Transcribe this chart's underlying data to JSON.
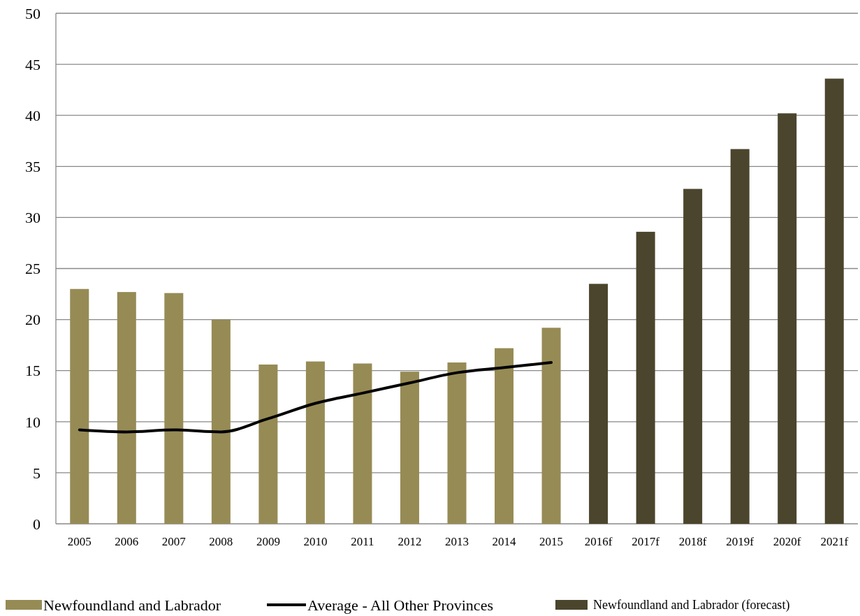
{
  "chart_data": {
    "type": "bar",
    "categories": [
      "2005",
      "2006",
      "2007",
      "2008",
      "2009",
      "2010",
      "2011",
      "2012",
      "2013",
      "2014",
      "2015",
      "2016f",
      "2017f",
      "2018f",
      "2019f",
      "2020f",
      "2021f"
    ],
    "series": [
      {
        "name": "Newfoundland and Labrador",
        "color": "#968b55",
        "values": [
          23.0,
          22.7,
          22.6,
          20.0,
          15.6,
          15.9,
          15.7,
          14.9,
          15.8,
          17.2,
          19.2,
          null,
          null,
          null,
          null,
          null,
          null
        ]
      },
      {
        "name": "Average - All Other Provinces",
        "type": "line",
        "color": "#000000",
        "values": [
          9.2,
          9.0,
          9.2,
          9.0,
          10.3,
          11.8,
          12.8,
          13.8,
          14.8,
          15.3,
          15.8,
          null,
          null,
          null,
          null,
          null,
          null
        ]
      },
      {
        "name": "Newfoundland and Labrador (forecast)",
        "color": "#4a452c",
        "values": [
          null,
          null,
          null,
          null,
          null,
          null,
          null,
          null,
          null,
          null,
          null,
          23.5,
          28.6,
          32.8,
          36.7,
          40.2,
          43.6
        ]
      }
    ],
    "ylim": [
      0,
      50
    ],
    "yticks": [
      0,
      5,
      10,
      15,
      20,
      25,
      30,
      35,
      40,
      45,
      50
    ],
    "grid": "y",
    "legend": "bottom",
    "marker": "none",
    "line_style": "solid"
  }
}
